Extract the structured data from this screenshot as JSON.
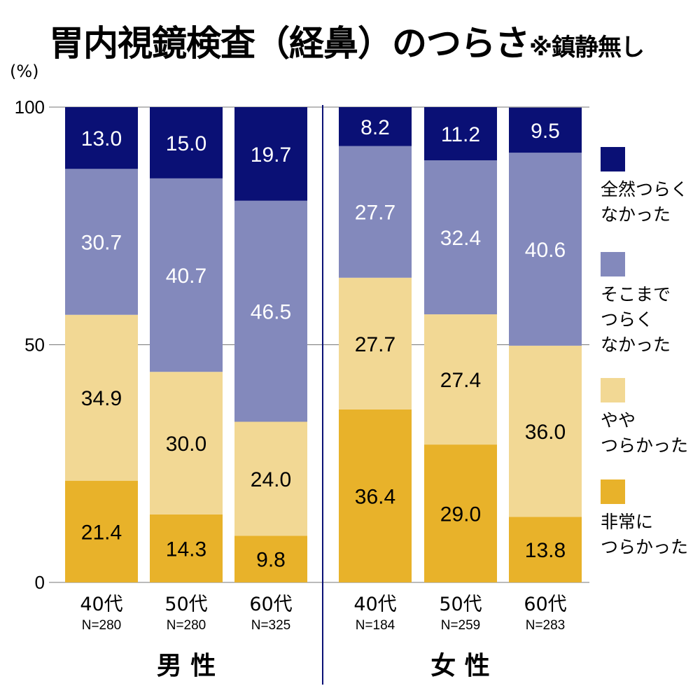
{
  "chart_data": {
    "type": "stacked-bar",
    "title": "胃内視鏡検査（経鼻）のつらさ",
    "subtitle": "※鎮静無し",
    "ylabel": "(%)",
    "ylim": [
      0,
      100
    ],
    "yticks": [
      "0",
      "50",
      "100"
    ],
    "grid": true,
    "legend_position": "right",
    "groups": [
      {
        "label": "男 性",
        "categories": [
          {
            "label": "40代",
            "n": "N=280",
            "values": [
              21.4,
              34.9,
              30.7,
              13.0
            ]
          },
          {
            "label": "50代",
            "n": "N=280",
            "values": [
              14.3,
              30.0,
              40.7,
              15.0
            ]
          },
          {
            "label": "60代",
            "n": "N=325",
            "values": [
              9.8,
              24.0,
              46.5,
              19.7
            ]
          }
        ]
      },
      {
        "label": "女 性",
        "categories": [
          {
            "label": "40代",
            "n": "N=184",
            "values": [
              36.4,
              27.7,
              27.7,
              8.2
            ]
          },
          {
            "label": "50代",
            "n": "N=259",
            "values": [
              29.0,
              27.4,
              32.4,
              11.2
            ]
          },
          {
            "label": "60代",
            "n": "N=283",
            "values": [
              13.8,
              36.0,
              40.6,
              9.5
            ]
          }
        ]
      }
    ],
    "series": [
      {
        "name": "非常につらかった",
        "lines": [
          "非常に",
          "つらかった"
        ],
        "color": "#e8b22a",
        "label_color": "#000000"
      },
      {
        "name": "ややつらかった",
        "lines": [
          "やや",
          "つらかった"
        ],
        "color": "#f2d894",
        "label_color": "#000000"
      },
      {
        "name": "そこまでつらくなかった",
        "lines": [
          "そこまで",
          "つらく",
          "なかった"
        ],
        "color": "#8389bc",
        "label_color": "#ffffff"
      },
      {
        "name": "全然つらくなかった",
        "lines": [
          "全然つらく",
          "なかった"
        ],
        "color": "#0a1075",
        "label_color": "#ffffff"
      }
    ]
  }
}
